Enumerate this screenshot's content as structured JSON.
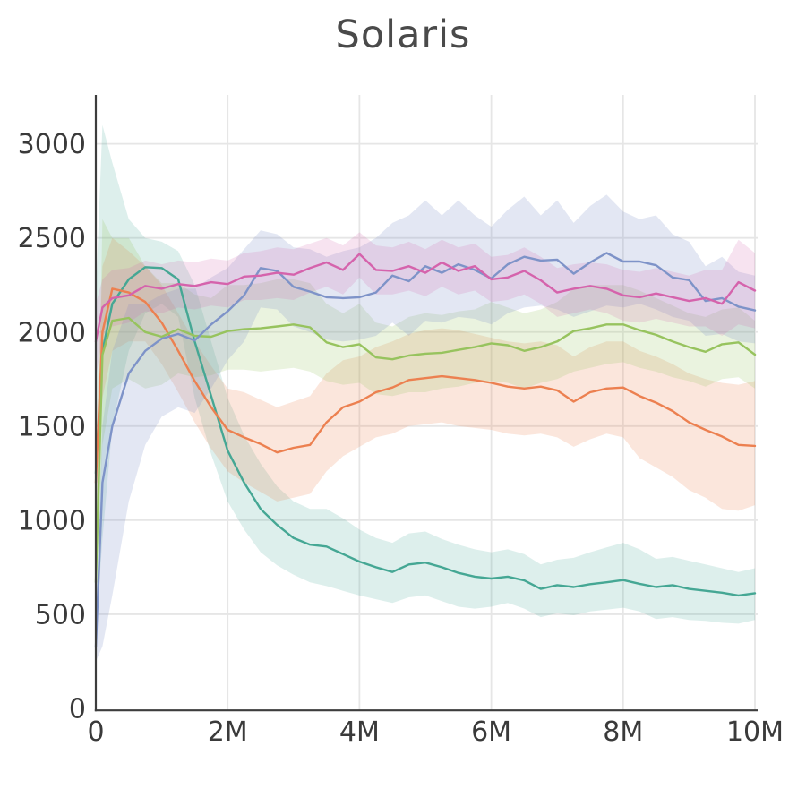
{
  "style": {
    "background": "#ffffff",
    "axis_color": "#3d3d3d",
    "grid_color": "#e6e6e6",
    "tick_label_color": "#3a3a3a",
    "title_color": "#4a4a4a"
  },
  "chart_data": {
    "type": "line",
    "title": "Solaris",
    "xlabel": "",
    "ylabel": "",
    "xlim": [
      0,
      10
    ],
    "ylim": [
      0,
      3260
    ],
    "grid": true,
    "legend": "none",
    "x_unit": "timesteps (millions)",
    "x_ticks": [
      {
        "m": 0,
        "label": "0"
      },
      {
        "m": 2,
        "label": "2M"
      },
      {
        "m": 4,
        "label": "4M"
      },
      {
        "m": 6,
        "label": "6M"
      },
      {
        "m": 8,
        "label": "8M"
      },
      {
        "m": 10,
        "label": "10M"
      }
    ],
    "y_ticks": [
      {
        "v": 0,
        "label": "0"
      },
      {
        "v": 500,
        "label": "500"
      },
      {
        "v": 1000,
        "label": "1000"
      },
      {
        "v": 1500,
        "label": "1500"
      },
      {
        "v": 2000,
        "label": "2000"
      },
      {
        "v": 2500,
        "label": "2500"
      },
      {
        "v": 3000,
        "label": "3000"
      }
    ],
    "x": [
      0,
      0.1,
      0.25,
      0.5,
      0.75,
      1,
      1.25,
      1.5,
      1.75,
      2,
      2.25,
      2.5,
      2.75,
      3,
      3.25,
      3.5,
      3.75,
      4,
      4.25,
      4.5,
      4.75,
      5,
      5.25,
      5.5,
      5.75,
      6,
      6.25,
      6.5,
      6.75,
      7,
      7.25,
      7.5,
      7.75,
      8,
      8.25,
      8.5,
      8.75,
      9,
      9.25,
      9.5,
      9.75,
      10
    ],
    "series": [
      {
        "name": "teal",
        "color": "#45a794",
        "band": "rgba(69,167,148,0.18)",
        "mean": [
          1250,
          1900,
          2150,
          2280,
          2345,
          2340,
          2280,
          1950,
          1660,
          1370,
          1200,
          1060,
          975,
          905,
          870,
          860,
          820,
          780,
          750,
          725,
          765,
          775,
          750,
          720,
          700,
          690,
          700,
          680,
          635,
          655,
          645,
          660,
          670,
          682,
          662,
          645,
          655,
          635,
          625,
          615,
          600,
          612
        ],
        "hi": [
          2200,
          3100,
          2900,
          2600,
          2500,
          2480,
          2430,
          2250,
          1950,
          1650,
          1450,
          1300,
          1180,
          1100,
          1060,
          1060,
          1010,
          950,
          905,
          880,
          930,
          940,
          900,
          870,
          845,
          830,
          845,
          820,
          765,
          790,
          800,
          830,
          855,
          880,
          845,
          795,
          805,
          785,
          765,
          745,
          725,
          745
        ],
        "lo": [
          400,
          900,
          1500,
          1900,
          2100,
          2150,
          2080,
          1650,
          1350,
          1100,
          950,
          830,
          760,
          710,
          670,
          650,
          625,
          600,
          580,
          560,
          590,
          600,
          570,
          540,
          530,
          540,
          560,
          530,
          485,
          505,
          495,
          515,
          525,
          535,
          515,
          475,
          485,
          470,
          465,
          455,
          450,
          470
        ]
      },
      {
        "name": "orange",
        "color": "#ec8050",
        "band": "rgba(236,128,80,0.20)",
        "mean": [
          1200,
          2000,
          2230,
          2210,
          2160,
          2050,
          1900,
          1740,
          1600,
          1480,
          1440,
          1405,
          1360,
          1385,
          1400,
          1520,
          1600,
          1630,
          1680,
          1705,
          1745,
          1755,
          1765,
          1755,
          1745,
          1730,
          1710,
          1700,
          1710,
          1690,
          1630,
          1680,
          1700,
          1705,
          1660,
          1625,
          1580,
          1520,
          1480,
          1445,
          1400,
          1395
        ],
        "hi": [
          1400,
          2350,
          2500,
          2430,
          2350,
          2250,
          2100,
          1950,
          1820,
          1700,
          1680,
          1640,
          1600,
          1630,
          1660,
          1780,
          1850,
          1870,
          1920,
          1950,
          1990,
          2010,
          2020,
          2010,
          1990,
          1970,
          1950,
          1940,
          1950,
          1930,
          1870,
          1920,
          1950,
          1950,
          1900,
          1870,
          1830,
          1780,
          1750,
          1730,
          1720,
          1740
        ],
        "lo": [
          1000,
          1650,
          1900,
          1950,
          1950,
          1830,
          1680,
          1520,
          1380,
          1260,
          1200,
          1150,
          1100,
          1120,
          1140,
          1260,
          1340,
          1390,
          1440,
          1460,
          1500,
          1510,
          1520,
          1500,
          1490,
          1480,
          1460,
          1450,
          1460,
          1440,
          1390,
          1430,
          1460,
          1440,
          1330,
          1280,
          1230,
          1160,
          1120,
          1060,
          1050,
          1080
        ]
      },
      {
        "name": "green",
        "color": "#97c35e",
        "band": "rgba(151,195,94,0.20)",
        "mean": [
          670,
          1880,
          2060,
          2075,
          2000,
          1975,
          2015,
          1980,
          1975,
          2005,
          2015,
          2020,
          2030,
          2040,
          2025,
          1945,
          1920,
          1935,
          1865,
          1855,
          1875,
          1885,
          1890,
          1905,
          1920,
          1940,
          1930,
          1900,
          1920,
          1950,
          2005,
          2020,
          2040,
          2040,
          2010,
          1985,
          1950,
          1920,
          1895,
          1935,
          1945,
          1880
        ],
        "hi": [
          800,
          2600,
          2500,
          2500,
          2350,
          2260,
          2260,
          2200,
          2180,
          2250,
          2250,
          2260,
          2280,
          2280,
          2260,
          2150,
          2100,
          2150,
          2050,
          2030,
          2080,
          2100,
          2090,
          2110,
          2120,
          2160,
          2130,
          2100,
          2120,
          2160,
          2230,
          2250,
          2250,
          2250,
          2220,
          2180,
          2140,
          2100,
          2080,
          2120,
          2130,
          2060
        ],
        "lo": [
          550,
          1400,
          1700,
          1750,
          1700,
          1720,
          1780,
          1760,
          1770,
          1800,
          1800,
          1790,
          1800,
          1810,
          1790,
          1740,
          1720,
          1730,
          1670,
          1660,
          1680,
          1680,
          1700,
          1710,
          1730,
          1740,
          1730,
          1700,
          1730,
          1750,
          1790,
          1810,
          1830,
          1840,
          1810,
          1790,
          1760,
          1740,
          1710,
          1750,
          1760,
          1700
        ]
      },
      {
        "name": "blue",
        "color": "#7e93c8",
        "band": "rgba(126,147,200,0.22)",
        "mean": [
          325,
          1200,
          1500,
          1780,
          1900,
          1965,
          1990,
          1955,
          2040,
          2110,
          2195,
          2340,
          2325,
          2240,
          2215,
          2185,
          2180,
          2185,
          2210,
          2300,
          2270,
          2350,
          2315,
          2360,
          2330,
          2285,
          2360,
          2400,
          2380,
          2385,
          2310,
          2370,
          2420,
          2375,
          2375,
          2355,
          2290,
          2276,
          2165,
          2180,
          2135,
          2115
        ],
        "hi": [
          400,
          1500,
          1900,
          2150,
          2150,
          2200,
          2230,
          2230,
          2290,
          2340,
          2440,
          2540,
          2520,
          2450,
          2440,
          2400,
          2430,
          2450,
          2500,
          2580,
          2620,
          2700,
          2620,
          2700,
          2620,
          2560,
          2650,
          2720,
          2620,
          2700,
          2580,
          2670,
          2730,
          2640,
          2600,
          2620,
          2520,
          2480,
          2350,
          2400,
          2320,
          2300
        ],
        "lo": [
          250,
          330,
          600,
          1100,
          1400,
          1550,
          1600,
          1570,
          1700,
          1850,
          1950,
          2130,
          2120,
          2030,
          2000,
          1960,
          1950,
          1960,
          1980,
          2050,
          1980,
          2060,
          2050,
          2080,
          2070,
          2040,
          2100,
          2130,
          2140,
          2120,
          2080,
          2110,
          2140,
          2130,
          2150,
          2120,
          2080,
          2060,
          1980,
          1990,
          1950,
          1940
        ]
      },
      {
        "name": "pink",
        "color": "#d563ac",
        "band": "rgba(213,99,172,0.18)",
        "mean": [
          1950,
          2130,
          2180,
          2195,
          2245,
          2230,
          2255,
          2245,
          2265,
          2255,
          2295,
          2300,
          2315,
          2305,
          2340,
          2370,
          2330,
          2415,
          2330,
          2325,
          2350,
          2315,
          2370,
          2325,
          2350,
          2280,
          2290,
          2325,
          2275,
          2210,
          2230,
          2245,
          2230,
          2195,
          2185,
          2205,
          2185,
          2165,
          2180,
          2150,
          2265,
          2220
        ],
        "hi": [
          2150,
          2280,
          2330,
          2340,
          2380,
          2360,
          2380,
          2370,
          2390,
          2380,
          2420,
          2430,
          2450,
          2440,
          2470,
          2500,
          2460,
          2530,
          2460,
          2450,
          2480,
          2440,
          2490,
          2450,
          2470,
          2400,
          2410,
          2450,
          2400,
          2340,
          2360,
          2370,
          2360,
          2330,
          2320,
          2340,
          2320,
          2300,
          2330,
          2330,
          2490,
          2420
        ],
        "lo": [
          1750,
          1980,
          2030,
          2050,
          2110,
          2100,
          2130,
          2120,
          2140,
          2130,
          2170,
          2170,
          2180,
          2170,
          2210,
          2240,
          2200,
          2290,
          2200,
          2200,
          2220,
          2190,
          2240,
          2200,
          2220,
          2160,
          2170,
          2200,
          2150,
          2080,
          2100,
          2120,
          2100,
          2060,
          2050,
          2070,
          2050,
          2030,
          2030,
          1980,
          2040,
          2020
        ]
      }
    ]
  }
}
